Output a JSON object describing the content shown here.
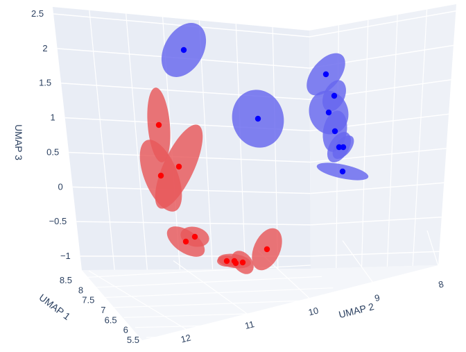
{
  "chart_data": {
    "type": "scatter3d",
    "title": "",
    "axes": {
      "x": {
        "label": "UMAP 1",
        "ticks": [
          "5.5",
          "6",
          "6.5",
          "7",
          "7.5",
          "8",
          "8.5"
        ],
        "range": [
          5.5,
          8.5
        ]
      },
      "y": {
        "label": "UMAP 2",
        "ticks": [
          "12",
          "11",
          "10",
          "9",
          "8"
        ],
        "range": [
          8,
          12
        ]
      },
      "z": {
        "label": "UMAP 3",
        "ticks": [
          "−1",
          "−0.5",
          "0",
          "0.5",
          "1",
          "1.5",
          "2",
          "2.5"
        ],
        "range": [
          -1.2,
          2.6
        ]
      }
    },
    "grid": true,
    "legend": "none",
    "series": [
      {
        "color": "#0000ff",
        "ellipse_color": "#6666ee",
        "points": [
          {
            "z": 2.05
          },
          {
            "z": 1.0
          },
          {
            "z": 1.68
          },
          {
            "z": 1.36
          },
          {
            "z": 1.11
          },
          {
            "z": 0.84
          },
          {
            "z": 0.6
          },
          {
            "z": 0.58
          },
          {
            "z": 0.22
          }
        ]
      },
      {
        "color": "#ff0000",
        "ellipse_color": "#e8585a",
        "points": [
          {
            "z": 0.92
          },
          {
            "z": 0.3
          },
          {
            "z": 0.16
          },
          {
            "z": -0.78
          },
          {
            "z": -0.82
          },
          {
            "z": -0.95
          },
          {
            "z": -1.1
          },
          {
            "z": -1.12
          },
          {
            "z": -1.13
          },
          {
            "z": -1.17
          }
        ]
      }
    ]
  }
}
